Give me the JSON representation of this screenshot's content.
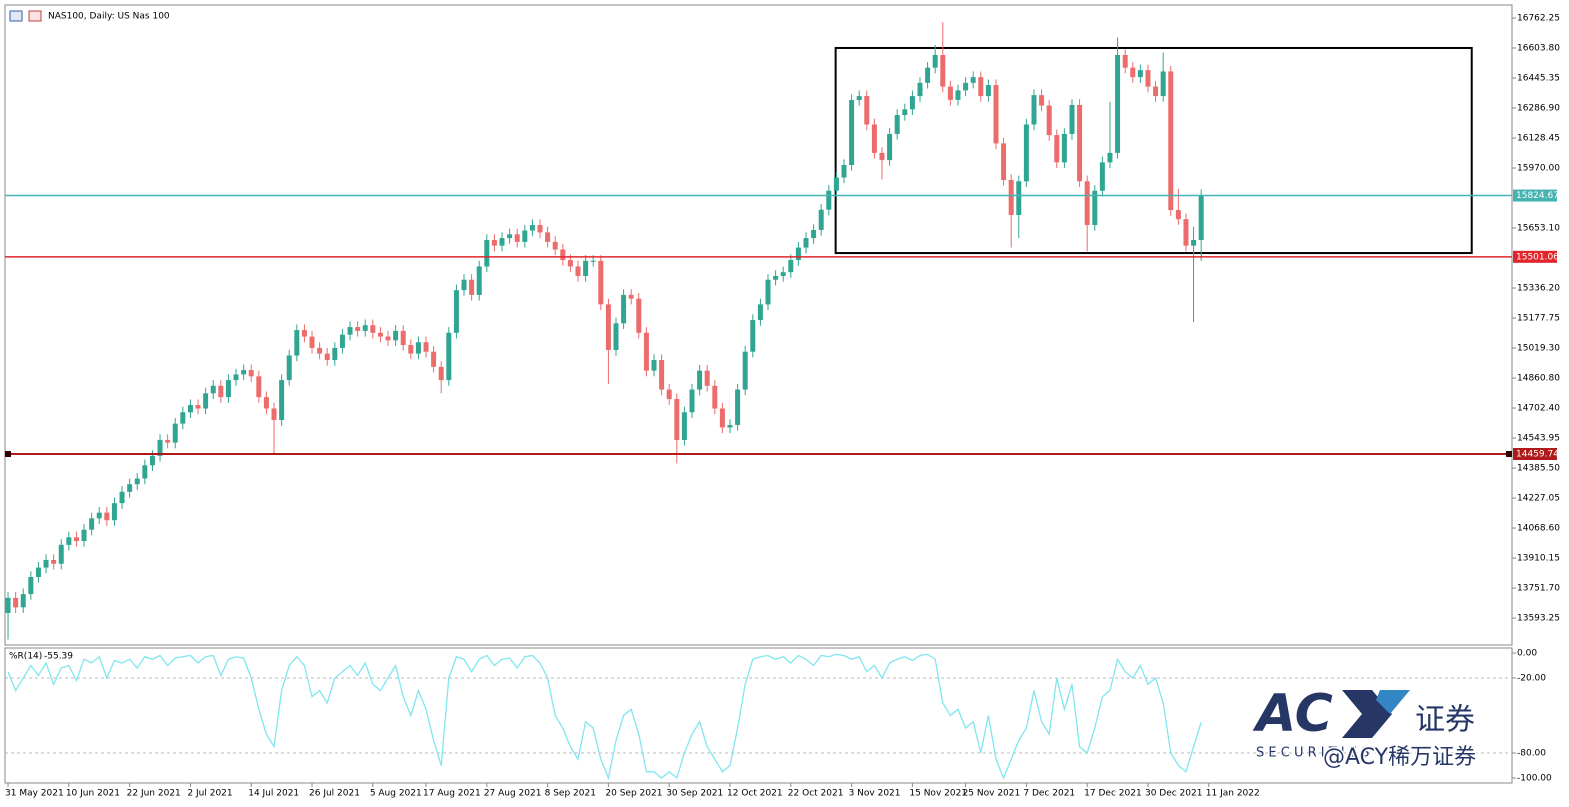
{
  "title": "NAS100, Daily:  US Nas 100",
  "chart_data": {
    "type": "candlestick",
    "up_color": "#2fa592",
    "down_color": "#ec6b6b",
    "xlim": [
      -0.4,
      197.9
    ],
    "ylim": [
      13451,
      16831
    ],
    "xticks": [
      {
        "value": 0,
        "label": "31 May 2021"
      },
      {
        "value": 8,
        "label": "10 Jun 2021"
      },
      {
        "value": 16,
        "label": "22 Jun 2021"
      },
      {
        "value": 24,
        "label": "2 Jul 2021"
      },
      {
        "value": 32,
        "label": "14 Jul 2021"
      },
      {
        "value": 40,
        "label": "26 Jul 2021"
      },
      {
        "value": 48,
        "label": "5 Aug 2021"
      },
      {
        "value": 55,
        "label": "17 Aug 2021"
      },
      {
        "value": 63,
        "label": "27 Aug 2021"
      },
      {
        "value": 71,
        "label": "8 Sep 2021"
      },
      {
        "value": 79,
        "label": "20 Sep 2021"
      },
      {
        "value": 87,
        "label": "30 Sep 2021"
      },
      {
        "value": 95,
        "label": "12 Oct 2021"
      },
      {
        "value": 103,
        "label": "22 Oct 2021"
      },
      {
        "value": 111,
        "label": "3 Nov 2021"
      },
      {
        "value": 119,
        "label": "15 Nov 2021"
      },
      {
        "value": 126,
        "label": "25 Nov 2021"
      },
      {
        "value": 134,
        "label": "7 Dec 2021"
      },
      {
        "value": 142,
        "label": "17 Dec 2021"
      },
      {
        "value": 150,
        "label": "30 Dec 2021"
      },
      {
        "value": 158,
        "label": "11 Jan 2022"
      }
    ],
    "yticks": [
      16762.25,
      {
        "value": 16603.8,
        "label": "16603.80"
      },
      16445.35,
      {
        "value": 16286.9,
        "label": "16286.90"
      },
      16128.45,
      {
        "value": 15970,
        "label": "15970.00"
      },
      {
        "value": 15653.1,
        "label": "15653.10"
      },
      {
        "value": 15336.2,
        "label": "15336.20"
      },
      15177.75,
      {
        "value": 15019.3,
        "label": "15019.30"
      },
      {
        "value": 14860.8,
        "label": "14860.80"
      },
      {
        "value": 14702.4,
        "label": "14702.40"
      },
      14543.95,
      {
        "value": 14385.5,
        "label": "14385.50"
      },
      14227.05,
      {
        "value": 14068.6,
        "label": "14068.60"
      },
      13910.15,
      {
        "value": 13751.7,
        "label": "13751.70"
      },
      13593.25
    ],
    "open": [
      13620,
      13700,
      13650,
      13720,
      13810,
      13860,
      13900,
      13880,
      13980,
      14020,
      14000,
      14060,
      14120,
      14150,
      14110,
      14200,
      14260,
      14300,
      14330,
      14400,
      14450,
      14534,
      14520,
      14620,
      14680,
      14718,
      14700,
      14780,
      14820,
      14760,
      14850,
      14880,
      14903,
      14870,
      14760,
      14700,
      14639,
      14850,
      14980,
      15114,
      15080,
      15020,
      14990,
      14956,
      15020,
      15090,
      15130,
      15110,
      15140,
      15100,
      15080,
      15060,
      15110,
      15035,
      14990,
      15050,
      15000,
      14920,
      14850,
      15100,
      15325,
      15380,
      15300,
      15450,
      15590,
      15560,
      15600,
      15620,
      15580,
      15640,
      15669,
      15630,
      15580,
      15540,
      15484,
      15450,
      15400,
      15480,
      15480,
      15250,
      15009,
      15150,
      15300,
      15280,
      15100,
      14900,
      14956,
      14800,
      14750,
      14534,
      14680,
      14800,
      14900,
      14820,
      14700,
      14600,
      14613,
      14800,
      15000,
      15167,
      15250,
      15380,
      15400,
      15420,
      15484,
      15550,
      15600,
      15643,
      15750,
      15850,
      15920,
      15986,
      16329,
      16350,
      16200,
      16050,
      16012,
      16150,
      16250,
      16280,
      16350,
      16420,
      16500,
      16567,
      16400,
      16330,
      16380,
      16420,
      16450,
      16350,
      16408,
      16100,
      15907,
      15722,
      15900,
      16200,
      16355,
      16300,
      16144,
      16000,
      16150,
      16303,
      15900,
      15669,
      15850,
      16000,
      16050,
      16567,
      16500,
      16450,
      16487,
      16400,
      16350,
      16480,
      15748,
      15700,
      15560,
      15590
    ],
    "high": [
      13730,
      13730,
      13750,
      13840,
      13890,
      13930,
      13930,
      14010,
      14050,
      14050,
      14090,
      14150,
      14180,
      14180,
      14230,
      14290,
      14330,
      14360,
      14430,
      14480,
      14564,
      14564,
      14650,
      14710,
      14748,
      14748,
      14810,
      14850,
      14850,
      14880,
      14910,
      14933,
      14933,
      14900,
      14790,
      14730,
      14880,
      15010,
      15144,
      15144,
      15110,
      15050,
      15020,
      15050,
      15120,
      15160,
      15160,
      15170,
      15170,
      15130,
      15110,
      15140,
      15140,
      15065,
      15080,
      15080,
      15030,
      14950,
      15130,
      15355,
      15410,
      15410,
      15480,
      15620,
      15620,
      15630,
      15650,
      15650,
      15670,
      15699,
      15699,
      15660,
      15610,
      15570,
      15514,
      15480,
      15510,
      15510,
      15510,
      15280,
      15180,
      15330,
      15330,
      15310,
      15130,
      14986,
      14986,
      14830,
      14780,
      14710,
      14830,
      14930,
      14930,
      14850,
      14730,
      14643,
      14830,
      15030,
      15197,
      15280,
      15410,
      15430,
      15450,
      15514,
      15580,
      15630,
      15673,
      15780,
      15880,
      15950,
      16016,
      16359,
      16380,
      16380,
      16230,
      16080,
      16180,
      16280,
      16310,
      16380,
      16450,
      16530,
      16620,
      16740,
      16430,
      16410,
      16450,
      16480,
      16480,
      16438,
      16438,
      16130,
      15937,
      15930,
      16230,
      16385,
      16385,
      16330,
      16174,
      16180,
      16333,
      16333,
      15930,
      15880,
      16030,
      16320,
      16660,
      16597,
      16530,
      16517,
      16517,
      16430,
      16580,
      16510,
      15860,
      15730,
      15660,
      15857
    ],
    "low": [
      13480,
      13620,
      13620,
      13690,
      13780,
      13830,
      13850,
      13850,
      13950,
      13970,
      13970,
      14030,
      14090,
      14080,
      14080,
      14170,
      14230,
      14270,
      14300,
      14370,
      14420,
      14490,
      14490,
      14590,
      14650,
      14670,
      14670,
      14750,
      14730,
      14730,
      14820,
      14850,
      14840,
      14730,
      14670,
      14460,
      14609,
      14820,
      14950,
      15050,
      14990,
      14960,
      14926,
      14926,
      14990,
      15060,
      15080,
      15080,
      15070,
      15050,
      15030,
      15030,
      15005,
      14960,
      14960,
      14970,
      14890,
      14780,
      14820,
      15070,
      15295,
      15270,
      15270,
      15420,
      15530,
      15530,
      15570,
      15550,
      15550,
      15610,
      15600,
      15550,
      15510,
      15454,
      15420,
      15370,
      15370,
      15450,
      15220,
      14830,
      14979,
      15120,
      15250,
      15070,
      14870,
      14870,
      14770,
      14720,
      14410,
      14504,
      14650,
      14770,
      14790,
      14670,
      14570,
      14570,
      14583,
      14770,
      14970,
      15137,
      15220,
      15350,
      15370,
      15390,
      15454,
      15520,
      15570,
      15613,
      15720,
      15820,
      15890,
      15956,
      16299,
      16170,
      16020,
      15910,
      15982,
      16120,
      16220,
      16250,
      16320,
      16390,
      16470,
      16370,
      16300,
      16300,
      16350,
      16390,
      16320,
      16320,
      16070,
      15877,
      15550,
      15600,
      15870,
      16170,
      16270,
      16114,
      15970,
      15970,
      16120,
      15870,
      15530,
      15639,
      15820,
      15970,
      16020,
      16470,
      16420,
      16420,
      16370,
      16320,
      16320,
      15718,
      15670,
      15530,
      15157,
      15480
    ],
    "close": [
      13700,
      13650,
      13720,
      13810,
      13860,
      13900,
      13880,
      13980,
      14020,
      14000,
      14060,
      14120,
      14150,
      14110,
      14200,
      14260,
      14300,
      14330,
      14400,
      14450,
      14534,
      14520,
      14620,
      14680,
      14718,
      14700,
      14780,
      14820,
      14760,
      14850,
      14880,
      14903,
      14870,
      14760,
      14700,
      14639,
      14850,
      14980,
      15114,
      15080,
      15020,
      14990,
      14956,
      15020,
      15090,
      15130,
      15110,
      15140,
      15100,
      15080,
      15060,
      15110,
      15035,
      14990,
      15050,
      15000,
      14920,
      14850,
      15100,
      15325,
      15380,
      15300,
      15450,
      15590,
      15560,
      15600,
      15620,
      15580,
      15640,
      15669,
      15630,
      15580,
      15540,
      15484,
      15450,
      15400,
      15480,
      15480,
      15250,
      15009,
      15150,
      15300,
      15280,
      15100,
      14900,
      14956,
      14800,
      14750,
      14534,
      14680,
      14800,
      14900,
      14820,
      14700,
      14600,
      14613,
      14800,
      15000,
      15167,
      15250,
      15380,
      15400,
      15420,
      15484,
      15550,
      15600,
      15643,
      15750,
      15850,
      15920,
      15986,
      16329,
      16350,
      16200,
      16050,
      16012,
      16150,
      16250,
      16280,
      16350,
      16420,
      16500,
      16567,
      16400,
      16330,
      16380,
      16420,
      16450,
      16350,
      16408,
      16100,
      15907,
      15722,
      15900,
      16200,
      16355,
      16300,
      16144,
      16000,
      16150,
      16303,
      15900,
      15669,
      15850,
      16000,
      16050,
      16567,
      16500,
      16450,
      16487,
      16400,
      16350,
      16480,
      15748,
      15700,
      15560,
      15590,
      15827
    ],
    "levels": [
      {
        "value": 15824.67,
        "color": "#46b3b3"
      },
      {
        "value": 15501.06,
        "color": "#e0252b"
      },
      {
        "value": 14459.74,
        "color": "#b01a1a",
        "anchors": true
      }
    ],
    "box": {
      "x": [
        108.9,
        192.6
      ],
      "y": [
        15521,
        16604
      ]
    },
    "indicator": {
      "type": "line",
      "label": "%R(14)",
      "color": "#7fe6f0",
      "ylim": [
        -104,
        4
      ],
      "yticks": [
        {
          "value": 0,
          "label": "0.00"
        },
        {
          "value": -20,
          "label": "-20.00"
        },
        {
          "value": -80,
          "label": "-80.00"
        },
        {
          "value": -100,
          "label": "-100.00"
        }
      ],
      "values": [
        -15,
        -30,
        -20,
        -10,
        -18,
        -8,
        -25,
        -12,
        -10,
        -22,
        -5,
        -8,
        -3,
        -20,
        -6,
        -8,
        -5,
        -12,
        -3,
        -5,
        -2,
        -10,
        -4,
        -3,
        -2,
        -8,
        -3,
        -2,
        -18,
        -5,
        -3,
        -4,
        -20,
        -45,
        -65,
        -75,
        -30,
        -10,
        -3,
        -10,
        -35,
        -30,
        -40,
        -20,
        -15,
        -10,
        -18,
        -8,
        -25,
        -30,
        -20,
        -10,
        -35,
        -50,
        -30,
        -45,
        -70,
        -90,
        -20,
        -3,
        -5,
        -15,
        -5,
        -2,
        -10,
        -5,
        -4,
        -12,
        -3,
        -2,
        -8,
        -20,
        -50,
        -60,
        -75,
        -85,
        -55,
        -60,
        -85,
        -100,
        -70,
        -50,
        -45,
        -65,
        -95,
        -95,
        -100,
        -95,
        -100,
        -80,
        -65,
        -55,
        -75,
        -85,
        -95,
        -90,
        -60,
        -25,
        -5,
        -3,
        -2,
        -5,
        -3,
        -8,
        -2,
        -5,
        -10,
        -2,
        -3,
        -1,
        -2,
        -5,
        -3,
        -15,
        -10,
        -20,
        -8,
        -5,
        -3,
        -6,
        -2,
        -1,
        -5,
        -40,
        -50,
        -45,
        -60,
        -55,
        -80,
        -50,
        -85,
        -100,
        -85,
        -70,
        -60,
        -30,
        -55,
        -65,
        -20,
        -45,
        -25,
        -75,
        -80,
        -60,
        -35,
        -30,
        -5,
        -15,
        -20,
        -10,
        -25,
        -20,
        -40,
        -80,
        -90,
        -95,
        -75,
        -55.39
      ]
    }
  },
  "watermark": {
    "logo": "AC",
    "suffix": "证券",
    "tagline": "S E C U R I T I E S",
    "handle": "@ACY稀万证券"
  }
}
